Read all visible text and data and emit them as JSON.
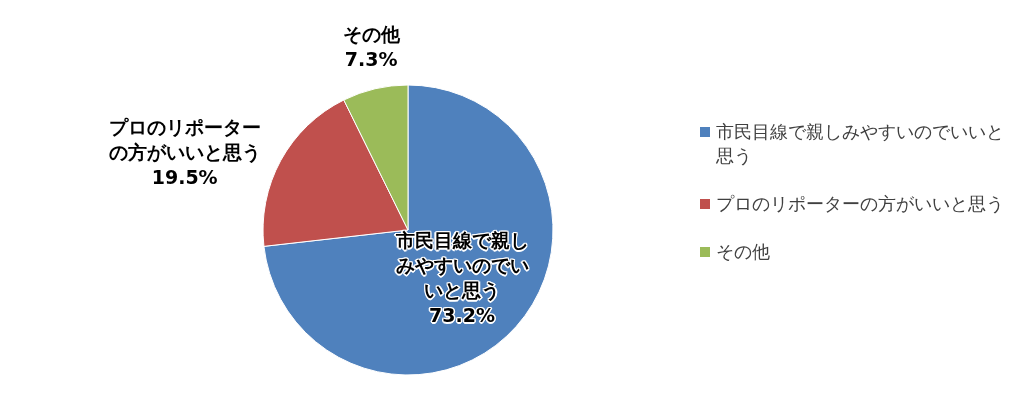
{
  "chart_data": {
    "type": "pie",
    "categories": [
      "市民目線で親しみやすいのでいいと思う",
      "プロのリポーターの方がいいと思う",
      "その他"
    ],
    "values": [
      73.2,
      19.5,
      7.3
    ],
    "colors": [
      "#4f81bd",
      "#c0504d",
      "#9bbb59"
    ],
    "value_labels": [
      "73.2%",
      "19.5%",
      "7.3%"
    ],
    "legend": "right"
  }
}
